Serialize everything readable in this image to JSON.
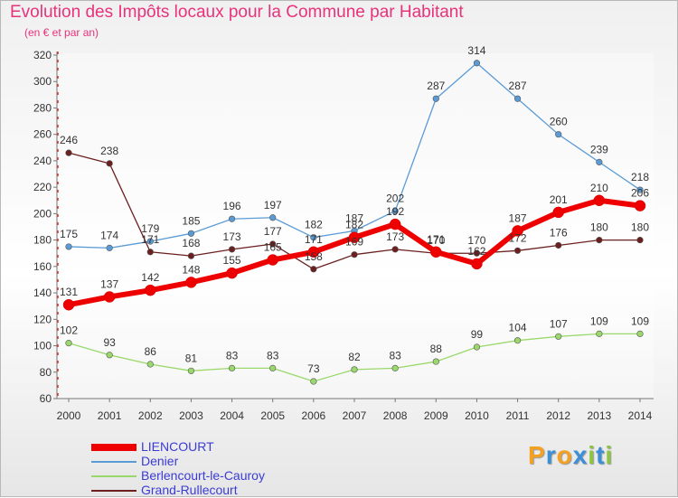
{
  "title": "Evolution des Impôts locaux pour la Commune par Habitant",
  "subtitle": "(en € et par an)",
  "brand": {
    "text": "Proxiti",
    "letters": [
      {
        "ch": "P",
        "color": "#f4a020"
      },
      {
        "ch": "r",
        "color": "#3a8fd8"
      },
      {
        "ch": "o",
        "color": "#f4a020"
      },
      {
        "ch": "x",
        "color": "#3a8fd8"
      },
      {
        "ch": "i",
        "color": "#8cc63f"
      },
      {
        "ch": "t",
        "color": "#3a8fd8"
      },
      {
        "ch": "i",
        "color": "#8cc63f"
      }
    ]
  },
  "chart_data": {
    "type": "line",
    "title": "Evolution des Impôts locaux pour la Commune par Habitant",
    "subtitle": "(en € et par an)",
    "x": [
      "2000",
      "2001",
      "2002",
      "2003",
      "2004",
      "2005",
      "2006",
      "2007",
      "2008",
      "2009",
      "2010",
      "2011",
      "2012",
      "2013",
      "2014"
    ],
    "ylim": [
      60,
      320
    ],
    "yticks": [
      60,
      80,
      100,
      120,
      140,
      160,
      180,
      200,
      220,
      240,
      260,
      280,
      300,
      320
    ],
    "grid": false,
    "legend": "bottom-left",
    "series": [
      {
        "name": "LIENCOURT",
        "color": "#ee0000",
        "values": [
          131,
          137,
          142,
          148,
          155,
          165,
          171,
          182,
          192,
          171,
          162,
          187,
          201,
          210,
          206
        ]
      },
      {
        "name": "Denier",
        "color": "#5b9bd5",
        "values": [
          175,
          174,
          179,
          185,
          196,
          197,
          182,
          187,
          202,
          287,
          314,
          287,
          260,
          239,
          218
        ]
      },
      {
        "name": "Berlencourt-le-Cauroy",
        "color": "#99d86a",
        "values": [
          102,
          93,
          86,
          81,
          83,
          83,
          73,
          82,
          83,
          88,
          99,
          104,
          107,
          109,
          109
        ]
      },
      {
        "name": "Grand-Rullecourt",
        "color": "#6b1f1f",
        "values": [
          246,
          238,
          171,
          168,
          173,
          177,
          158,
          169,
          173,
          170,
          170,
          172,
          176,
          180,
          180
        ]
      }
    ]
  }
}
